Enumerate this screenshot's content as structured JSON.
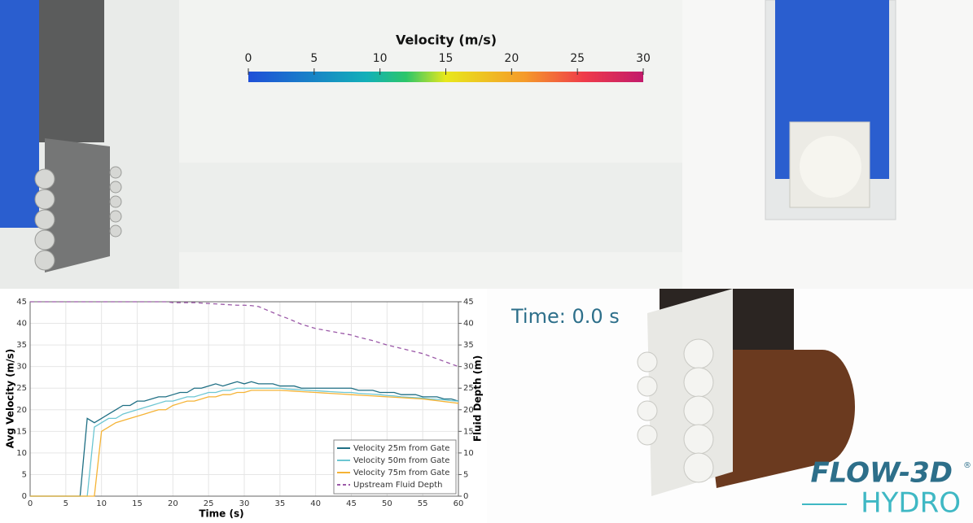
{
  "chart_data": {
    "type": "line",
    "x_label": "Time (s)",
    "y_label": "Avg Velocity (m/s)",
    "y2_label": "Fluid Depth (m)",
    "xlim": [
      0,
      60
    ],
    "ylim": [
      0,
      45
    ],
    "y2lim": [
      0,
      45
    ],
    "xticks": [
      0,
      5,
      10,
      15,
      20,
      25,
      30,
      35,
      40,
      45,
      50,
      55,
      60
    ],
    "yticks": [
      0,
      5,
      10,
      15,
      20,
      25,
      30,
      35,
      40,
      45
    ],
    "y2ticks": [
      0,
      5,
      10,
      15,
      20,
      25,
      30,
      35,
      40,
      45
    ],
    "grid": true,
    "legend": "lower right",
    "x": [
      0,
      1,
      2,
      3,
      4,
      5,
      6,
      7,
      8,
      9,
      10,
      11,
      12,
      13,
      14,
      15,
      16,
      17,
      18,
      19,
      20,
      21,
      22,
      23,
      24,
      25,
      26,
      27,
      28,
      29,
      30,
      31,
      32,
      33,
      34,
      35,
      36,
      37,
      38,
      39,
      40,
      41,
      42,
      43,
      44,
      45,
      46,
      47,
      48,
      49,
      50,
      51,
      52,
      53,
      54,
      55,
      56,
      57,
      58,
      59,
      60
    ],
    "series": [
      {
        "name": "Velocity 25m from Gate",
        "color": "#1f6f84",
        "values": [
          0,
          0,
          0,
          0,
          0,
          0,
          0,
          0,
          18,
          17,
          18,
          19,
          20,
          21,
          21,
          22,
          22,
          22.5,
          23,
          23,
          23.5,
          24,
          24,
          25,
          25,
          25.5,
          26,
          25.5,
          26,
          26.5,
          26,
          26.5,
          26,
          26,
          26,
          25.5,
          25.5,
          25.5,
          25,
          25,
          25,
          25,
          25,
          25,
          25,
          25,
          24.5,
          24.5,
          24.5,
          24,
          24,
          24,
          23.5,
          23.5,
          23.5,
          23,
          23,
          23,
          22.5,
          22.5,
          22
        ]
      },
      {
        "name": "Velocity 50m from Gate",
        "color": "#6cc6d2",
        "values": [
          0,
          0,
          0,
          0,
          0,
          0,
          0,
          0,
          0,
          16,
          17,
          18,
          18,
          19,
          19.5,
          20,
          20.5,
          21,
          21.5,
          22,
          22,
          22.5,
          23,
          23,
          23.5,
          24,
          24,
          24.5,
          24.5,
          25,
          25,
          25,
          25,
          25,
          25,
          25,
          24.8,
          24.7,
          24.6,
          24.5,
          24.4,
          24.3,
          24.2,
          24.1,
          24,
          24,
          23.8,
          23.7,
          23.6,
          23.5,
          23.3,
          23.2,
          23,
          22.9,
          22.8,
          22.7,
          22.5,
          22.4,
          22.3,
          22.1,
          22
        ]
      },
      {
        "name": "Velocity 75m from Gate",
        "color": "#f5b335",
        "values": [
          0,
          0,
          0,
          0,
          0,
          0,
          0,
          0,
          0,
          0,
          15,
          16,
          17,
          17.5,
          18,
          18.5,
          19,
          19.5,
          20,
          20,
          21,
          21.5,
          22,
          22,
          22.5,
          23,
          23,
          23.5,
          23.5,
          24,
          24,
          24.5,
          24.5,
          24.5,
          24.5,
          24.5,
          24.4,
          24.3,
          24.2,
          24.1,
          24,
          23.9,
          23.8,
          23.7,
          23.6,
          23.5,
          23.4,
          23.3,
          23.2,
          23.1,
          23,
          22.9,
          22.8,
          22.7,
          22.6,
          22.5,
          22.3,
          22.1,
          21.9,
          21.7,
          21.5
        ]
      },
      {
        "name": "Upstream Fluid Depth",
        "color": "#9b59a8",
        "axis": "y2",
        "dashed": true,
        "values": [
          45,
          45,
          45,
          45,
          45,
          45,
          45,
          45,
          45,
          45,
          45,
          45,
          45,
          45,
          45,
          45,
          45,
          45,
          45,
          45,
          44.8,
          44.8,
          44.8,
          44.8,
          44.7,
          44.6,
          44.5,
          44.4,
          44.3,
          44.2,
          44.2,
          44.1,
          43.9,
          43.2,
          42.5,
          41.8,
          41.2,
          40.5,
          39.8,
          39.3,
          38.8,
          38.5,
          38.2,
          37.9,
          37.6,
          37.3,
          36.8,
          36.4,
          36,
          35.5,
          35,
          34.6,
          34.2,
          33.8,
          33.4,
          33,
          32.4,
          31.8,
          31.2,
          30.6,
          30
        ]
      }
    ]
  },
  "colorbar": {
    "title": "Velocity (m/s)",
    "range": [
      0,
      30
    ],
    "ticks": [
      0,
      5,
      10,
      15,
      20,
      25,
      30
    ]
  },
  "time_label": "Time: 0.0 s",
  "logo": {
    "name": "FLOW-3D",
    "mark": "®",
    "product": "HYDRO"
  }
}
